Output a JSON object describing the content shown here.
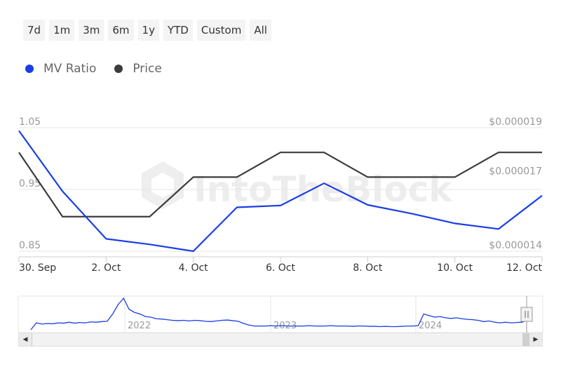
{
  "range_buttons": [
    "7d",
    "1m",
    "3m",
    "6m",
    "1y",
    "YTD",
    "Custom",
    "All"
  ],
  "colors": {
    "mv_ratio": "#1a3ee6",
    "price": "#3c3c3c",
    "grid": "#e6e6e6",
    "axis_text": "#999999"
  },
  "watermark": "IntoTheBlock",
  "chart_data": {
    "type": "line",
    "x": [
      "30. Sep",
      "1. Oct",
      "2. Oct",
      "3. Oct",
      "4. Oct",
      "5. Oct",
      "6. Oct",
      "7. Oct",
      "8. Oct",
      "9. Oct",
      "10. Oct",
      "11. Oct",
      "12. Oct"
    ],
    "x_tick_labels": [
      "30. Sep",
      "2. Oct",
      "4. Oct",
      "6. Oct",
      "8. Oct",
      "10. Oct",
      "12. Oct"
    ],
    "series": [
      {
        "name": "MV Ratio",
        "axis": "left",
        "values": [
          1.045,
          0.947,
          0.87,
          0.861,
          0.85,
          0.921,
          0.924,
          0.96,
          0.925,
          0.911,
          0.895,
          0.886,
          0.94
        ]
      },
      {
        "name": "Price",
        "axis": "right",
        "values": [
          1.8e-05,
          1.54e-05,
          1.54e-05,
          1.54e-05,
          1.7e-05,
          1.7e-05,
          1.8e-05,
          1.8e-05,
          1.7e-05,
          1.7e-05,
          1.7e-05,
          1.8e-05,
          1.8e-05
        ]
      }
    ],
    "y_left": {
      "ylim": [
        0.85,
        1.05
      ],
      "ticks": [
        "1.05",
        "0.95",
        "0.85"
      ]
    },
    "y_right": {
      "ylim": [
        1.4e-05,
        1.9e-05
      ],
      "ticks": [
        "$0.000019",
        "$0.000017",
        "$0.000014"
      ]
    },
    "grid": true,
    "legend_position": "top-left"
  },
  "navigator": {
    "year_labels": [
      "2022",
      "2023",
      "2024"
    ],
    "values": [
      0,
      0.22,
      0.18,
      0.2,
      0.19,
      0.22,
      0.21,
      0.24,
      0.21,
      0.23,
      0.22,
      0.25,
      0.24,
      0.26,
      0.27,
      0.5,
      0.8,
      1.0,
      0.65,
      0.55,
      0.5,
      0.42,
      0.4,
      0.35,
      0.34,
      0.32,
      0.3,
      0.29,
      0.3,
      0.28,
      0.3,
      0.29,
      0.27,
      0.26,
      0.28,
      0.3,
      0.31,
      0.29,
      0.27,
      0.2,
      0.15,
      0.12,
      0.12,
      0.12,
      0.13,
      0.12,
      0.13,
      0.12,
      0.12,
      0.12,
      0.12,
      0.13,
      0.12,
      0.12,
      0.12,
      0.13,
      0.12,
      0.12,
      0.12,
      0.11,
      0.12,
      0.12,
      0.11,
      0.11,
      0.1,
      0.11,
      0.1,
      0.1,
      0.11,
      0.12,
      0.12,
      0.13,
      0.5,
      0.45,
      0.4,
      0.42,
      0.38,
      0.36,
      0.38,
      0.35,
      0.33,
      0.32,
      0.3,
      0.26,
      0.28,
      0.24,
      0.22,
      0.24,
      0.22,
      0.23,
      0.24,
      0.3
    ]
  }
}
